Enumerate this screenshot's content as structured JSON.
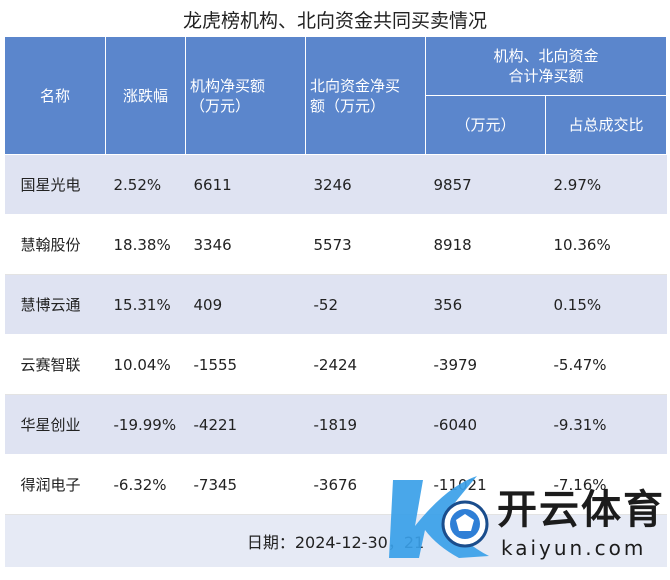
{
  "title": "龙虎榜机构、北向资金共同买卖情况",
  "columns": {
    "name": "名称",
    "change": "涨跌幅",
    "inst": "机构净买额\n（万元）",
    "north": "北向资金净买\n额（万元）",
    "combined_group": "机构、北向资金\n合计净买额",
    "combined_amount": "（万元）",
    "combined_ratio": "占总成交比"
  },
  "rows": [
    {
      "name": "国星光电",
      "change": "2.52%",
      "inst": "6611",
      "north": "3246",
      "total": "9857",
      "ratio": "2.97%"
    },
    {
      "name": "慧翰股份",
      "change": "18.38%",
      "inst": "3346",
      "north": "5573",
      "total": "8918",
      "ratio": "10.36%"
    },
    {
      "name": "慧博云通",
      "change": "15.31%",
      "inst": "409",
      "north": "-52",
      "total": "356",
      "ratio": "0.15%"
    },
    {
      "name": "云赛智联",
      "change": "10.04%",
      "inst": "-1555",
      "north": "-2424",
      "total": "-3979",
      "ratio": "-5.47%"
    },
    {
      "name": "华星创业",
      "change": "-19.99%",
      "inst": "-4221",
      "north": "-1819",
      "total": "-6040",
      "ratio": "-9.31%"
    },
    {
      "name": "得润电子",
      "change": "-6.32%",
      "inst": "-7345",
      "north": "-3676",
      "total": "-11021",
      "ratio": "-7.16%"
    }
  ],
  "footer": "日期：2024-12-30，21",
  "watermark": {
    "brand": "开云体育",
    "url": "kaiyun.com"
  },
  "colors": {
    "header_bg": "#5b86cc",
    "row_alt_bg": "#dfe3f2",
    "footer_bg": "#e6eaf5"
  }
}
